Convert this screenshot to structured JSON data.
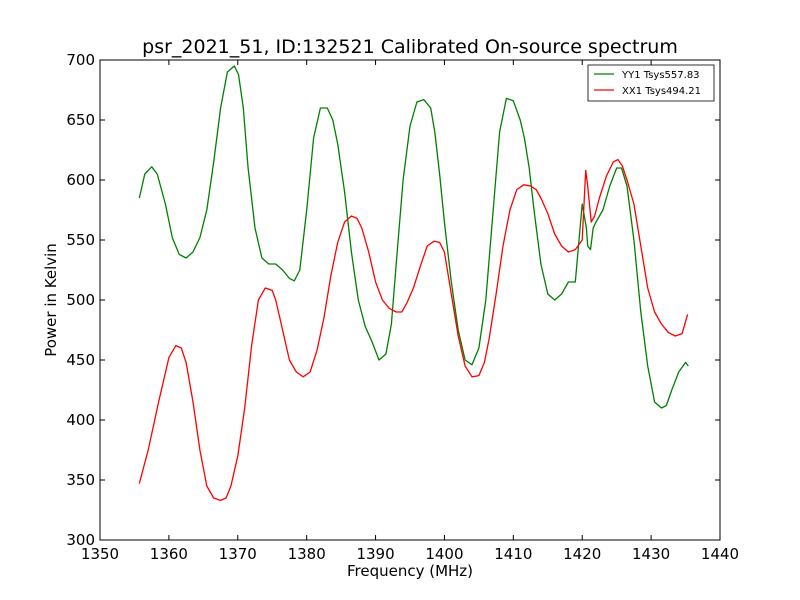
{
  "chart_data": {
    "type": "line",
    "title": "psr_2021_51, ID:132521 Calibrated On-source spectrum",
    "xlabel": "Frequency (MHz)",
    "ylabel": "Power in Kelvin",
    "xlim": [
      1350,
      1440
    ],
    "ylim": [
      300,
      700
    ],
    "xticks": [
      1350,
      1360,
      1370,
      1380,
      1390,
      1400,
      1410,
      1420,
      1430,
      1440
    ],
    "yticks": [
      300,
      350,
      400,
      450,
      500,
      550,
      600,
      650,
      700
    ],
    "grid": false,
    "legend_placement": "top-right",
    "series": [
      {
        "name": "YY1 Tsys557.83",
        "color": "#008000",
        "x": [
          1355.7,
          1356.5,
          1357.5,
          1358.3,
          1359.5,
          1360.5,
          1361.5,
          1362.5,
          1363.5,
          1364.5,
          1365.5,
          1366.5,
          1367.5,
          1368.5,
          1369.5,
          1370.1,
          1370.8,
          1371.5,
          1372.5,
          1373.5,
          1374.5,
          1375.5,
          1376.5,
          1377.5,
          1378.2,
          1379.0,
          1380.0,
          1381.0,
          1382.0,
          1383.0,
          1383.8,
          1384.5,
          1385.5,
          1386.5,
          1387.5,
          1388.5,
          1389.5,
          1390.5,
          1391.5,
          1392.3,
          1393.0,
          1394.0,
          1395.0,
          1396.0,
          1397.0,
          1398.0,
          1398.6,
          1399.3,
          1400.0,
          1401.0,
          1402.0,
          1403.0,
          1404.0,
          1405.0,
          1406.0,
          1407.0,
          1408.0,
          1409.0,
          1410.0,
          1411.0,
          1411.6,
          1412.3,
          1413.0,
          1414.0,
          1415.0,
          1416.0,
          1417.0,
          1418.0,
          1419.0,
          1420.0,
          1420.6,
          1420.8,
          1421.2,
          1421.6,
          1422.0,
          1423.0,
          1424.0,
          1425.0,
          1425.7,
          1426.5,
          1427.5,
          1428.5,
          1429.5,
          1430.5,
          1431.5,
          1432.2,
          1433.0,
          1434.0,
          1435.0,
          1435.4
        ],
        "values": [
          585,
          605,
          611,
          605,
          580,
          552,
          538,
          535,
          540,
          552,
          575,
          615,
          660,
          690,
          695,
          688,
          660,
          610,
          560,
          535,
          530,
          530,
          525,
          518,
          516,
          525,
          575,
          635,
          660,
          660,
          650,
          630,
          590,
          540,
          500,
          478,
          465,
          450,
          455,
          480,
          530,
          600,
          645,
          665,
          667,
          660,
          640,
          605,
          565,
          515,
          475,
          450,
          446,
          460,
          500,
          570,
          640,
          668,
          666,
          650,
          635,
          610,
          575,
          530,
          505,
          500,
          505,
          515,
          515,
          580,
          560,
          545,
          542,
          560,
          565,
          575,
          595,
          610,
          610,
          595,
          550,
          490,
          445,
          415,
          410,
          412,
          425,
          440,
          448,
          445
        ],
        "legend_label": "YY1 Tsys557.83"
      },
      {
        "name": "XX1 Tsys494.21",
        "color": "#ff0000",
        "x": [
          1355.7,
          1357.0,
          1358.5,
          1360.0,
          1361.0,
          1361.8,
          1362.5,
          1363.5,
          1364.5,
          1365.5,
          1366.5,
          1367.5,
          1368.3,
          1369.0,
          1370.0,
          1371.0,
          1372.0,
          1373.0,
          1374.0,
          1375.0,
          1375.5,
          1376.5,
          1377.5,
          1378.5,
          1379.5,
          1380.5,
          1381.5,
          1382.5,
          1383.5,
          1384.5,
          1385.5,
          1386.5,
          1387.3,
          1388.0,
          1389.0,
          1390.0,
          1391.0,
          1392.0,
          1393.0,
          1393.8,
          1394.5,
          1395.5,
          1396.5,
          1397.5,
          1398.5,
          1399.3,
          1400.0,
          1401.0,
          1402.0,
          1403.0,
          1404.0,
          1405.0,
          1405.8,
          1406.5,
          1407.5,
          1408.5,
          1409.5,
          1410.5,
          1411.5,
          1412.5,
          1413.3,
          1414.0,
          1415.0,
          1416.0,
          1417.0,
          1418.0,
          1419.0,
          1420.0,
          1420.5,
          1420.8,
          1421.3,
          1421.8,
          1422.5,
          1423.5,
          1424.5,
          1425.2,
          1425.8,
          1426.5,
          1427.5,
          1428.5,
          1429.5,
          1430.5,
          1431.5,
          1432.5,
          1433.5,
          1434.5,
          1435.3
        ],
        "values": [
          347,
          375,
          415,
          452,
          462,
          460,
          448,
          415,
          375,
          345,
          335,
          333,
          335,
          345,
          370,
          410,
          462,
          500,
          510,
          508,
          500,
          475,
          450,
          440,
          436,
          440,
          458,
          485,
          520,
          548,
          565,
          570,
          568,
          560,
          540,
          515,
          500,
          493,
          490,
          490,
          497,
          510,
          528,
          545,
          549,
          548,
          540,
          505,
          470,
          445,
          436,
          437,
          448,
          468,
          505,
          545,
          575,
          592,
          596,
          595,
          592,
          585,
          572,
          555,
          545,
          540,
          542,
          550,
          608,
          595,
          565,
          570,
          585,
          603,
          615,
          617,
          612,
          600,
          580,
          545,
          510,
          490,
          480,
          473,
          470,
          472,
          488
        ],
        "legend_label": "XX1 Tsys494.21"
      }
    ]
  }
}
